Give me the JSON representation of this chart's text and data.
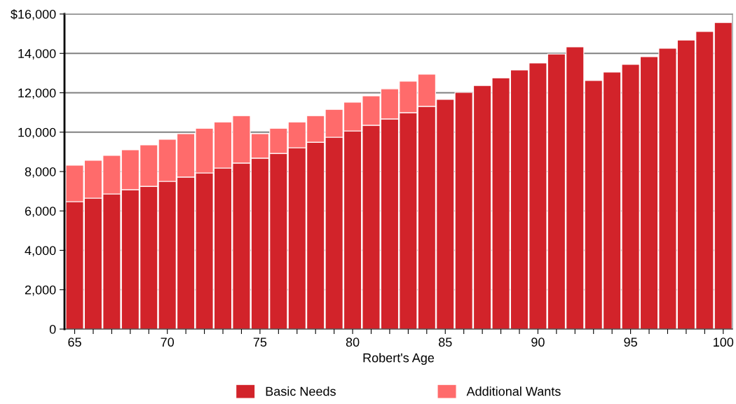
{
  "chart_data": {
    "type": "bar",
    "stacked": true,
    "xlabel": "Robert's Age",
    "x": [
      65,
      66,
      67,
      68,
      69,
      70,
      71,
      72,
      73,
      74,
      75,
      76,
      77,
      78,
      79,
      80,
      81,
      82,
      83,
      84,
      85,
      86,
      87,
      88,
      89,
      90,
      91,
      92,
      93,
      94,
      95,
      96,
      97,
      98,
      99,
      100
    ],
    "series": [
      {
        "name": "Basic Needs",
        "color": "#d2232a",
        "values": [
          6470,
          6650,
          6860,
          7080,
          7250,
          7500,
          7720,
          7930,
          8180,
          8430,
          8680,
          8920,
          9210,
          9490,
          9740,
          10060,
          10350,
          10670,
          10990,
          11310,
          11660,
          12020,
          12370,
          12760,
          13160,
          13510,
          13970,
          14330,
          12620,
          13050,
          13440,
          13830,
          14260,
          14680,
          15110,
          15570
        ]
      },
      {
        "name": "Additional Wants",
        "color": "#ff6b6b",
        "values": [
          1850,
          1920,
          1960,
          2020,
          2100,
          2140,
          2200,
          2270,
          2340,
          2410,
          1240,
          1280,
          1310,
          1350,
          1420,
          1460,
          1490,
          1530,
          1600,
          1630,
          null,
          null,
          null,
          null,
          null,
          null,
          null,
          null,
          null,
          null,
          null,
          null,
          null,
          null,
          null,
          null
        ]
      }
    ],
    "xlim": [
      64.45,
      100.5
    ],
    "ylim": [
      0,
      16000
    ],
    "xticks": [
      65,
      {
        "value": 66,
        "label": null
      },
      {
        "value": 67,
        "label": null
      },
      {
        "value": 68,
        "label": null
      },
      {
        "value": 69,
        "label": null
      },
      70,
      {
        "value": 71,
        "label": null
      },
      {
        "value": 72,
        "label": null
      },
      {
        "value": 73,
        "label": null
      },
      {
        "value": 74,
        "label": null
      },
      75,
      {
        "value": 76,
        "label": null
      },
      {
        "value": 77,
        "label": null
      },
      {
        "value": 78,
        "label": null
      },
      {
        "value": 79,
        "label": null
      },
      80,
      {
        "value": 81,
        "label": null
      },
      {
        "value": 82,
        "label": null
      },
      {
        "value": 83,
        "label": null
      },
      {
        "value": 84,
        "label": null
      },
      85,
      {
        "value": 86,
        "label": null
      },
      {
        "value": 87,
        "label": null
      },
      {
        "value": 88,
        "label": null
      },
      {
        "value": 89,
        "label": null
      },
      90,
      {
        "value": 91,
        "label": null
      },
      {
        "value": 92,
        "label": null
      },
      {
        "value": 93,
        "label": null
      },
      {
        "value": 94,
        "label": null
      },
      95,
      {
        "value": 96,
        "label": null
      },
      {
        "value": 97,
        "label": null
      },
      {
        "value": 98,
        "label": null
      },
      {
        "value": 99,
        "label": null
      },
      100
    ],
    "yticks": [
      0,
      {
        "value": 2000,
        "label": "2,000"
      },
      {
        "value": 4000,
        "label": "4,000"
      },
      {
        "value": 6000,
        "label": "6,000"
      },
      {
        "value": 8000,
        "label": "8,000"
      },
      {
        "value": 10000,
        "label": "10,000"
      },
      {
        "value": 12000,
        "label": "12,000"
      },
      {
        "value": 14000,
        "label": "14,000"
      },
      {
        "value": 16000,
        "label": "$16,000"
      }
    ],
    "grid": "y",
    "legend": "bottom"
  }
}
